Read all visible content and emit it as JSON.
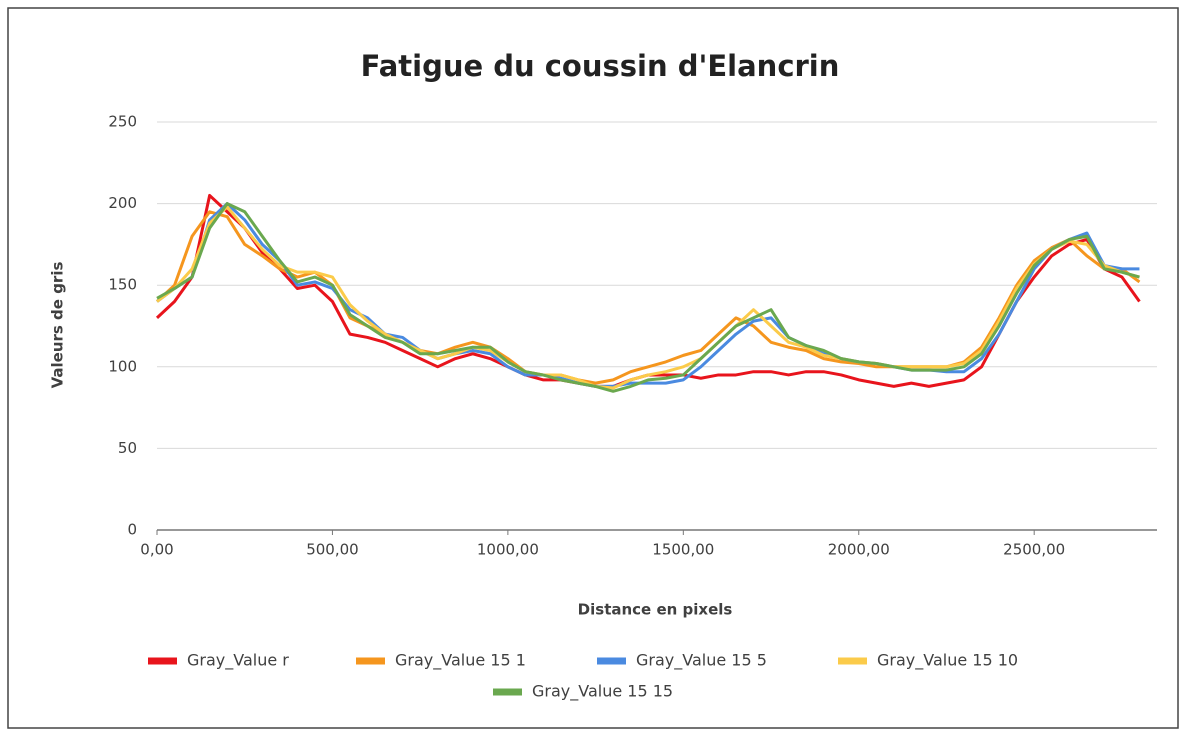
{
  "chart_data": {
    "type": "line",
    "title": "Fatigue du coussin d'Elancrin",
    "x_label": "Distance en pixels",
    "y_label": "Valeurs de gris",
    "xlim": [
      0,
      2850
    ],
    "ylim": [
      0,
      250
    ],
    "xticks": [
      {
        "value": 0,
        "label": "0,00"
      },
      {
        "value": 500,
        "label": "500,00"
      },
      {
        "value": 1000,
        "label": "1000,00"
      },
      {
        "value": 1500,
        "label": "1500,00"
      },
      {
        "value": 2000,
        "label": "2000,00"
      },
      {
        "value": 2500,
        "label": "2500,00"
      }
    ],
    "yticks": [
      0,
      50,
      100,
      150,
      200,
      250
    ],
    "grid": true,
    "legend": "bottom",
    "x": [
      0,
      50,
      100,
      150,
      200,
      250,
      300,
      350,
      400,
      450,
      500,
      550,
      600,
      650,
      700,
      750,
      800,
      850,
      900,
      950,
      1000,
      1050,
      1100,
      1150,
      1200,
      1250,
      1300,
      1350,
      1400,
      1450,
      1500,
      1550,
      1600,
      1650,
      1700,
      1750,
      1800,
      1850,
      1900,
      1950,
      2000,
      2050,
      2100,
      2150,
      2200,
      2250,
      2300,
      2350,
      2400,
      2450,
      2500,
      2550,
      2600,
      2650,
      2700,
      2750,
      2800
    ],
    "series": [
      {
        "name": "Gray_Value r",
        "color": "#e8141c",
        "values": [
          130,
          140,
          155,
          205,
          195,
          185,
          170,
          160,
          148,
          150,
          140,
          120,
          118,
          115,
          110,
          105,
          100,
          105,
          108,
          105,
          100,
          95,
          92,
          92,
          90,
          88,
          88,
          92,
          95,
          95,
          95,
          93,
          95,
          95,
          97,
          97,
          95,
          97,
          97,
          95,
          92,
          90,
          88,
          90,
          88,
          90,
          92,
          100,
          120,
          140,
          155,
          168,
          175,
          178,
          160,
          155,
          140
        ]
      },
      {
        "name": "Gray_Value 15 1",
        "color": "#f5961e",
        "values": [
          140,
          150,
          180,
          195,
          192,
          175,
          168,
          160,
          155,
          158,
          150,
          130,
          125,
          120,
          115,
          110,
          108,
          112,
          115,
          112,
          105,
          97,
          95,
          95,
          92,
          90,
          92,
          97,
          100,
          103,
          107,
          110,
          120,
          130,
          125,
          115,
          112,
          110,
          105,
          103,
          102,
          100,
          100,
          100,
          100,
          100,
          103,
          112,
          130,
          150,
          165,
          173,
          178,
          168,
          160,
          160,
          152
        ]
      },
      {
        "name": "Gray_Value 15 5",
        "color": "#4a8ae0",
        "values": [
          140,
          148,
          155,
          190,
          200,
          190,
          175,
          165,
          150,
          152,
          148,
          135,
          130,
          120,
          118,
          110,
          105,
          108,
          110,
          108,
          100,
          95,
          95,
          93,
          90,
          88,
          88,
          90,
          90,
          90,
          92,
          100,
          110,
          120,
          128,
          130,
          118,
          113,
          108,
          105,
          103,
          102,
          100,
          98,
          98,
          97,
          97,
          105,
          120,
          140,
          160,
          172,
          178,
          182,
          162,
          160,
          160
        ]
      },
      {
        "name": "Gray_Value 15 10",
        "color": "#fbcb4a",
        "values": [
          140,
          148,
          160,
          188,
          198,
          185,
          172,
          162,
          158,
          158,
          155,
          138,
          128,
          120,
          115,
          110,
          105,
          108,
          112,
          110,
          103,
          97,
          95,
          95,
          92,
          88,
          87,
          92,
          95,
          97,
          100,
          105,
          115,
          125,
          135,
          125,
          115,
          112,
          107,
          105,
          103,
          102,
          100,
          100,
          100,
          100,
          102,
          110,
          128,
          148,
          163,
          172,
          177,
          175,
          162,
          158,
          155
        ]
      },
      {
        "name": "Gray_Value 15 15",
        "color": "#6aa84f",
        "values": [
          142,
          148,
          155,
          185,
          200,
          195,
          180,
          165,
          152,
          155,
          150,
          132,
          125,
          118,
          115,
          108,
          108,
          110,
          112,
          112,
          103,
          97,
          95,
          92,
          90,
          88,
          85,
          88,
          92,
          93,
          95,
          105,
          115,
          125,
          130,
          135,
          118,
          113,
          110,
          105,
          103,
          102,
          100,
          98,
          98,
          98,
          100,
          108,
          125,
          145,
          162,
          172,
          178,
          180,
          160,
          158,
          155
        ]
      }
    ]
  }
}
